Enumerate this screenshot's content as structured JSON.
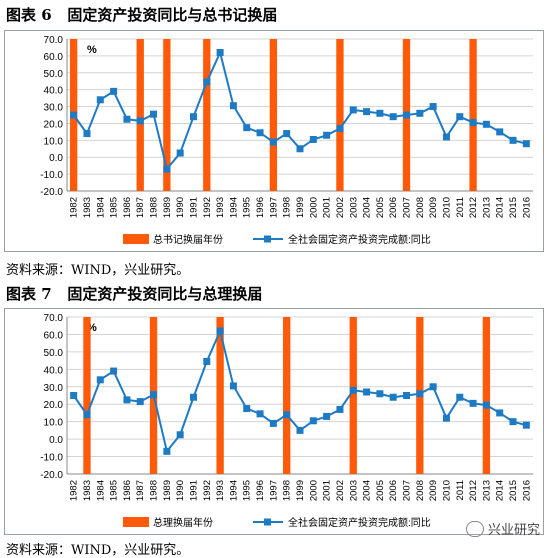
{
  "figures": [
    {
      "caption": "图表 6   固定资产投资同比与总书记换届",
      "source": "资料来源：WIND，兴业研究。"
    },
    {
      "caption": "图表 7   固定资产投资同比与总理换届",
      "source": "资料来源：WIND，兴业研究。"
    }
  ],
  "watermark": "兴业研究",
  "colors": {
    "bar": "#ff5a0a",
    "line": "#1f7ac4",
    "grid": "#d4d4d4"
  },
  "chart_data": [
    {
      "type": "bar+line",
      "unit_label": "%",
      "categories": [
        "1982",
        "1983",
        "1984",
        "1985",
        "1986",
        "1987",
        "1988",
        "1989",
        "1990",
        "1991",
        "1992",
        "1993",
        "1994",
        "1995",
        "1996",
        "1997",
        "1998",
        "1999",
        "2000",
        "2001",
        "2002",
        "2003",
        "2004",
        "2005",
        "2006",
        "2007",
        "2008",
        "2009",
        "2010",
        "2011",
        "2012",
        "2013",
        "2014",
        "2015",
        "2016"
      ],
      "yticks": [
        "70.0",
        "60.0",
        "50.0",
        "40.0",
        "30.0",
        "20.0",
        "10.0",
        "0.0",
        "-10.0",
        "-20.0"
      ],
      "ylim": [
        -20,
        70
      ],
      "bar_series": {
        "name": "总书记换届年份",
        "years": [
          "1982",
          "1987",
          "1989",
          "1992",
          "1997",
          "2002",
          "2007",
          "2012"
        ]
      },
      "line_series": {
        "name": "全社会固定资产投资完成额:同比",
        "values": [
          25,
          14,
          34,
          39,
          22.5,
          21.5,
          25.5,
          -7,
          2.5,
          24,
          44.5,
          62,
          30.5,
          17.5,
          14.5,
          9,
          14,
          5,
          10.5,
          13,
          17,
          28,
          27,
          26,
          24,
          25,
          26,
          30,
          12,
          24,
          20.5,
          19.5,
          15,
          10,
          8
        ]
      },
      "legend_position": "bottom",
      "grid": true
    },
    {
      "type": "bar+line",
      "unit_label": "%",
      "categories": [
        "1982",
        "1983",
        "1984",
        "1985",
        "1986",
        "1987",
        "1988",
        "1989",
        "1990",
        "1991",
        "1992",
        "1993",
        "1994",
        "1995",
        "1996",
        "1997",
        "1998",
        "1999",
        "2000",
        "2001",
        "2002",
        "2003",
        "2004",
        "2005",
        "2006",
        "2007",
        "2008",
        "2009",
        "2010",
        "2011",
        "2012",
        "2013",
        "2014",
        "2015",
        "2016"
      ],
      "yticks": [
        "70.0",
        "60.0",
        "50.0",
        "40.0",
        "30.0",
        "20.0",
        "10.0",
        "0.0",
        "-10.0",
        "-20.0"
      ],
      "ylim": [
        -20,
        70
      ],
      "bar_series": {
        "name": "总理换届年份",
        "years": [
          "1983",
          "1988",
          "1993",
          "1998",
          "2003",
          "2008",
          "2013"
        ]
      },
      "line_series": {
        "name": "全社会固定资产投资完成额:同比",
        "values": [
          25,
          14,
          34,
          39,
          22.5,
          21.5,
          25.5,
          -7,
          2.5,
          24,
          44.5,
          62,
          30.5,
          17.5,
          14.5,
          9,
          14,
          5,
          10.5,
          13,
          17,
          28,
          27,
          26,
          24,
          25,
          26,
          30,
          12,
          24,
          20.5,
          19.5,
          15,
          10,
          8
        ]
      },
      "legend_position": "bottom",
      "grid": true
    }
  ]
}
